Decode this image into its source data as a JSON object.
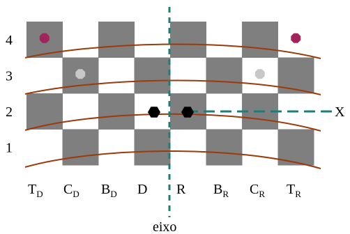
{
  "diagram": {
    "grid": {
      "columns": 8,
      "rows": 4,
      "dark_color": "#7f7f7f",
      "light_color": "#ffffff"
    },
    "row_labels": [
      "4",
      "3",
      "2",
      "1"
    ],
    "column_labels": [
      {
        "main": "T",
        "sub": "D"
      },
      {
        "main": "C",
        "sub": "D"
      },
      {
        "main": "B",
        "sub": "D"
      },
      {
        "main": "D",
        "sub": ""
      },
      {
        "main": "R",
        "sub": ""
      },
      {
        "main": "B",
        "sub": "R"
      },
      {
        "main": "C",
        "sub": "R"
      },
      {
        "main": "T",
        "sub": "R"
      }
    ],
    "axis_label": "eixo",
    "x_label": "X",
    "colors": {
      "curve": "#9b3a0a",
      "axis": "#1a7f7a",
      "piece_tower": "#a3245a",
      "piece_knight": "#c8c8c8",
      "piece_center": "#000000"
    },
    "pieces": [
      {
        "name": "tower-piece-left",
        "col": 0,
        "row": 0,
        "color_key": "piece_tower",
        "shape": "octagon"
      },
      {
        "name": "tower-piece-right",
        "col": 7,
        "row": 0,
        "color_key": "piece_tower",
        "shape": "octagon"
      },
      {
        "name": "knight-piece-left",
        "col": 1,
        "row": 1,
        "color_key": "piece_knight",
        "shape": "octagon"
      },
      {
        "name": "knight-piece-right",
        "col": 6,
        "row": 1,
        "color_key": "piece_knight",
        "shape": "octagon"
      },
      {
        "name": "center-piece-left",
        "col": 3,
        "row": 2,
        "color_key": "piece_center",
        "shape": "hexagon"
      },
      {
        "name": "center-piece-right",
        "col": 4,
        "row": 2,
        "color_key": "piece_center",
        "shape": "hexagon"
      }
    ]
  }
}
